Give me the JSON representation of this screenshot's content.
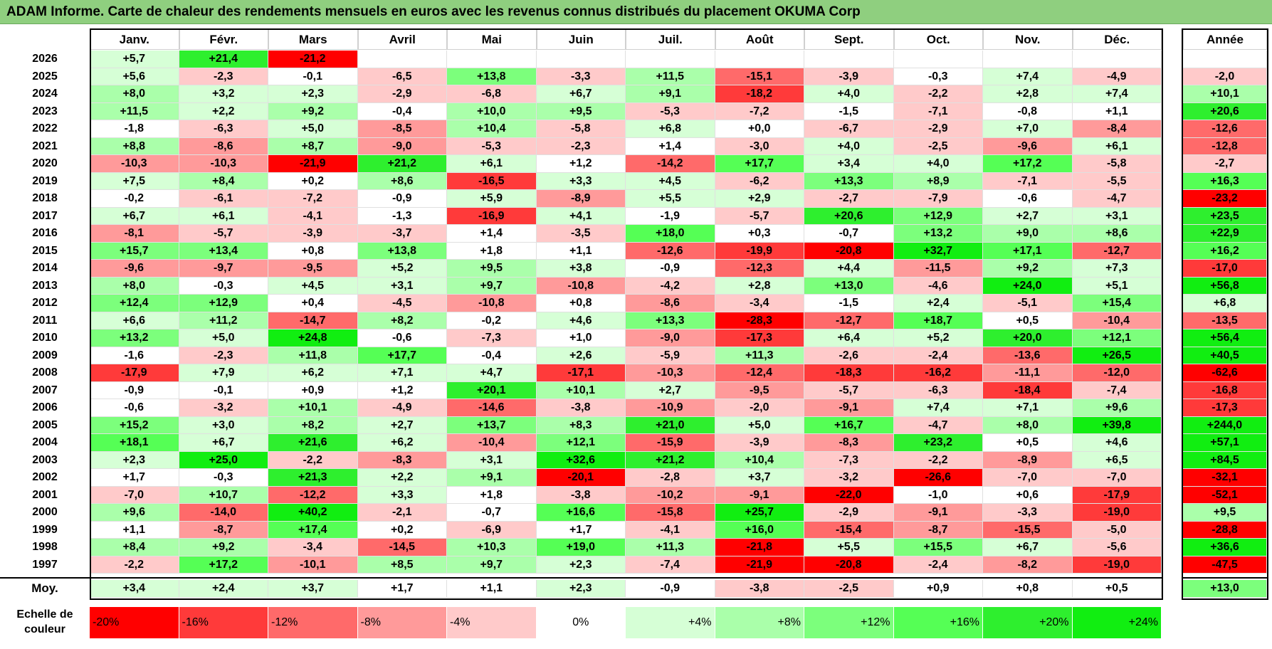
{
  "title": "ADAM Informe. Carte de chaleur des rendements mensuels en euros avec les revenus connus distribués du placement OKUMA Corp",
  "chart_data": {
    "type": "heatmap",
    "columns": [
      "Janv.",
      "Févr.",
      "Mars",
      "Avril",
      "Mai",
      "Juin",
      "Juil.",
      "Août",
      "Sept.",
      "Oct.",
      "Nov.",
      "Déc."
    ],
    "annual_header": "Année",
    "rows": [
      {
        "year": "2026",
        "values": [
          "+5,7",
          "+21,4",
          "-21,2",
          "",
          "",
          "",
          "",
          "",
          "",
          "",
          "",
          ""
        ],
        "annual": ""
      },
      {
        "year": "2025",
        "values": [
          "+5,6",
          "-2,3",
          "-0,1",
          "-6,5",
          "+13,8",
          "-3,3",
          "+11,5",
          "-15,1",
          "-3,9",
          "-0,3",
          "+7,4",
          "-4,9"
        ],
        "annual": "-2,0"
      },
      {
        "year": "2024",
        "values": [
          "+8,0",
          "+3,2",
          "+2,3",
          "-2,9",
          "-6,8",
          "+6,7",
          "+9,1",
          "-18,2",
          "+4,0",
          "-2,2",
          "+2,8",
          "+7,4"
        ],
        "annual": "+10,1"
      },
      {
        "year": "2023",
        "values": [
          "+11,5",
          "+2,2",
          "+9,2",
          "-0,4",
          "+10,0",
          "+9,5",
          "-5,3",
          "-7,2",
          "-1,5",
          "-7,1",
          "-0,8",
          "+1,1"
        ],
        "annual": "+20,6"
      },
      {
        "year": "2022",
        "values": [
          "-1,8",
          "-6,3",
          "+5,0",
          "-8,5",
          "+10,4",
          "-5,8",
          "+6,8",
          "+0,0",
          "-6,7",
          "-2,9",
          "+7,0",
          "-8,4"
        ],
        "annual": "-12,6"
      },
      {
        "year": "2021",
        "values": [
          "+8,8",
          "-8,6",
          "+8,7",
          "-9,0",
          "-5,3",
          "-2,3",
          "+1,4",
          "-3,0",
          "+4,0",
          "-2,5",
          "-9,6",
          "+6,1"
        ],
        "annual": "-12,8"
      },
      {
        "year": "2020",
        "values": [
          "-10,3",
          "-10,3",
          "-21,9",
          "+21,2",
          "+6,1",
          "+1,2",
          "-14,2",
          "+17,7",
          "+3,4",
          "+4,0",
          "+17,2",
          "-5,8"
        ],
        "annual": "-2,7"
      },
      {
        "year": "2019",
        "values": [
          "+7,5",
          "+8,4",
          "+0,2",
          "+8,6",
          "-16,5",
          "+3,3",
          "+4,5",
          "-6,2",
          "+13,3",
          "+8,9",
          "-7,1",
          "-5,5"
        ],
        "annual": "+16,3"
      },
      {
        "year": "2018",
        "values": [
          "-0,2",
          "-6,1",
          "-7,2",
          "-0,9",
          "+5,9",
          "-8,9",
          "+5,5",
          "+2,9",
          "-2,7",
          "-7,9",
          "-0,6",
          "-4,7"
        ],
        "annual": "-23,2"
      },
      {
        "year": "2017",
        "values": [
          "+6,7",
          "+6,1",
          "-4,1",
          "-1,3",
          "-16,9",
          "+4,1",
          "-1,9",
          "-5,7",
          "+20,6",
          "+12,9",
          "+2,7",
          "+3,1"
        ],
        "annual": "+23,5"
      },
      {
        "year": "2016",
        "values": [
          "-8,1",
          "-5,7",
          "-3,9",
          "-3,7",
          "+1,4",
          "-3,5",
          "+18,0",
          "+0,3",
          "-0,7",
          "+13,2",
          "+9,0",
          "+8,6"
        ],
        "annual": "+22,9"
      },
      {
        "year": "2015",
        "values": [
          "+15,7",
          "+13,4",
          "+0,8",
          "+13,8",
          "+1,8",
          "+1,1",
          "-12,6",
          "-19,9",
          "-20,8",
          "+32,7",
          "+17,1",
          "-12,7"
        ],
        "annual": "+16,2"
      },
      {
        "year": "2014",
        "values": [
          "-9,6",
          "-9,7",
          "-9,5",
          "+5,2",
          "+9,5",
          "+3,8",
          "-0,9",
          "-12,3",
          "+4,4",
          "-11,5",
          "+9,2",
          "+7,3"
        ],
        "annual": "-17,0"
      },
      {
        "year": "2013",
        "values": [
          "+8,0",
          "-0,3",
          "+4,5",
          "+3,1",
          "+9,7",
          "-10,8",
          "-4,2",
          "+2,8",
          "+13,0",
          "-4,6",
          "+24,0",
          "+5,1"
        ],
        "annual": "+56,8"
      },
      {
        "year": "2012",
        "values": [
          "+12,4",
          "+12,9",
          "+0,4",
          "-4,5",
          "-10,8",
          "+0,8",
          "-8,6",
          "-3,4",
          "-1,5",
          "+2,4",
          "-5,1",
          "+15,4"
        ],
        "annual": "+6,8"
      },
      {
        "year": "2011",
        "values": [
          "+6,6",
          "+11,2",
          "-14,7",
          "+8,2",
          "-0,2",
          "+4,6",
          "+13,3",
          "-28,3",
          "-12,7",
          "+18,7",
          "+0,5",
          "-10,4"
        ],
        "annual": "-13,5"
      },
      {
        "year": "2010",
        "values": [
          "+13,2",
          "+5,0",
          "+24,8",
          "-0,6",
          "-7,3",
          "+1,0",
          "-9,0",
          "-17,3",
          "+6,4",
          "+5,2",
          "+20,0",
          "+12,1"
        ],
        "annual": "+56,4"
      },
      {
        "year": "2009",
        "values": [
          "-1,6",
          "-2,3",
          "+11,8",
          "+17,7",
          "-0,4",
          "+2,6",
          "-5,9",
          "+11,3",
          "-2,6",
          "-2,4",
          "-13,6",
          "+26,5"
        ],
        "annual": "+40,5"
      },
      {
        "year": "2008",
        "values": [
          "-17,9",
          "+7,9",
          "+6,2",
          "+7,1",
          "+4,7",
          "-17,1",
          "-10,3",
          "-12,4",
          "-18,3",
          "-16,2",
          "-11,1",
          "-12,0"
        ],
        "annual": "-62,6"
      },
      {
        "year": "2007",
        "values": [
          "-0,9",
          "-0,1",
          "+0,9",
          "+1,2",
          "+20,1",
          "+10,1",
          "+2,7",
          "-9,5",
          "-5,7",
          "-6,3",
          "-18,4",
          "-7,4"
        ],
        "annual": "-16,8"
      },
      {
        "year": "2006",
        "values": [
          "-0,6",
          "-3,2",
          "+10,1",
          "-4,9",
          "-14,6",
          "-3,8",
          "-10,9",
          "-2,0",
          "-9,1",
          "+7,4",
          "+7,1",
          "+9,6"
        ],
        "annual": "-17,3"
      },
      {
        "year": "2005",
        "values": [
          "+15,2",
          "+3,0",
          "+8,2",
          "+2,7",
          "+13,7",
          "+8,3",
          "+21,0",
          "+5,0",
          "+16,7",
          "-4,7",
          "+8,0",
          "+39,8"
        ],
        "annual": "+244,0"
      },
      {
        "year": "2004",
        "values": [
          "+18,1",
          "+6,7",
          "+21,6",
          "+6,2",
          "-10,4",
          "+12,1",
          "-15,9",
          "-3,9",
          "-8,3",
          "+23,2",
          "+0,5",
          "+4,6"
        ],
        "annual": "+57,1"
      },
      {
        "year": "2003",
        "values": [
          "+2,3",
          "+25,0",
          "-2,2",
          "-8,3",
          "+3,1",
          "+32,6",
          "+21,2",
          "+10,4",
          "-7,3",
          "-2,2",
          "-8,9",
          "+6,5"
        ],
        "annual": "+84,5"
      },
      {
        "year": "2002",
        "values": [
          "+1,7",
          "-0,3",
          "+21,3",
          "+2,2",
          "+9,1",
          "-20,1",
          "-2,8",
          "+3,7",
          "-3,2",
          "-26,6",
          "-7,0",
          "-7,0"
        ],
        "annual": "-32,1"
      },
      {
        "year": "2001",
        "values": [
          "-7,0",
          "+10,7",
          "-12,2",
          "+3,3",
          "+1,8",
          "-3,8",
          "-10,2",
          "-9,1",
          "-22,0",
          "-1,0",
          "+0,6",
          "-17,9"
        ],
        "annual": "-52,1"
      },
      {
        "year": "2000",
        "values": [
          "+9,6",
          "-14,0",
          "+40,2",
          "-2,1",
          "-0,7",
          "+16,6",
          "-15,8",
          "+25,7",
          "-2,9",
          "-9,1",
          "-3,3",
          "-19,0"
        ],
        "annual": "+9,5"
      },
      {
        "year": "1999",
        "values": [
          "+1,1",
          "-8,7",
          "+17,4",
          "+0,2",
          "-6,9",
          "+1,7",
          "-4,1",
          "+16,0",
          "-15,4",
          "-8,7",
          "-15,5",
          "-5,0"
        ],
        "annual": "-28,8"
      },
      {
        "year": "1998",
        "values": [
          "+8,4",
          "+9,2",
          "-3,4",
          "-14,5",
          "+10,3",
          "+19,0",
          "+11,3",
          "-21,8",
          "+5,5",
          "+15,5",
          "+6,7",
          "-5,6"
        ],
        "annual": "+36,6"
      },
      {
        "year": "1997",
        "values": [
          "-2,2",
          "+17,2",
          "-10,1",
          "+8,5",
          "+9,7",
          "+2,3",
          "-7,4",
          "-21,9",
          "-20,8",
          "-2,4",
          "-8,2",
          "-19,0"
        ],
        "annual": "-47,5"
      }
    ],
    "average": {
      "label": "Moy.",
      "values": [
        "+3,4",
        "+2,4",
        "+3,7",
        "+1,7",
        "+1,1",
        "+2,3",
        "-0,9",
        "-3,8",
        "-2,5",
        "+0,9",
        "+0,8",
        "+0,5"
      ],
      "annual": "+13,0"
    },
    "color_scale": {
      "label": "Echelle de couleur",
      "labels": [
        "-20%",
        "-16%",
        "-12%",
        "-8%",
        "-4%",
        "0%",
        "+4%",
        "+8%",
        "+12%",
        "+16%",
        "+20%",
        "+24%"
      ],
      "thresholds": [
        -20,
        -16,
        -12,
        -8,
        -4,
        0,
        4,
        8,
        12,
        16,
        20,
        24
      ],
      "colors": [
        "#ff0000",
        "#ff3a3a",
        "#ff6a6a",
        "#ff9a9a",
        "#ffcaca",
        "#ffffff",
        "#d6ffd6",
        "#aaffaa",
        "#7cff7c",
        "#55ff55",
        "#2eef2e",
        "#11ee11"
      ]
    }
  }
}
